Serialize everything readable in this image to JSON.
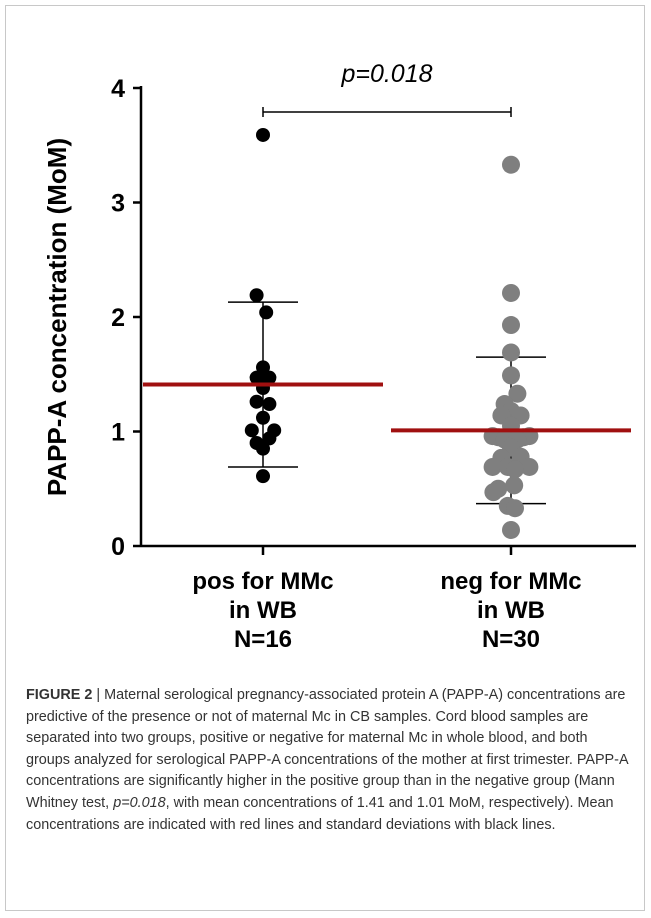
{
  "chart_data": {
    "type": "scatter",
    "title": "",
    "ylabel": "PAPP-A concentration (MoM)",
    "xlabel": "",
    "ylim": [
      0,
      4
    ],
    "yticks": [
      0,
      1,
      2,
      3,
      4
    ],
    "grid": false,
    "categories": [
      {
        "lines": [
          "pos for MMc",
          "in WB",
          "N=16"
        ]
      },
      {
        "lines": [
          "neg for MMc",
          "in WB",
          "N=30"
        ]
      }
    ],
    "series": [
      {
        "mean": 1.41,
        "sd_low": 0.69,
        "sd_high": 2.13,
        "color": "#000000",
        "points": [
          {
            "y": 3.59,
            "dx": 0.0
          },
          {
            "y": 2.19,
            "dx": -0.16
          },
          {
            "y": 2.04,
            "dx": 0.08
          },
          {
            "y": 1.56,
            "dx": 0.0
          },
          {
            "y": 1.47,
            "dx": -0.16
          },
          {
            "y": 1.47,
            "dx": 0.16
          },
          {
            "y": 1.38,
            "dx": 0.0
          },
          {
            "y": 1.26,
            "dx": -0.16
          },
          {
            "y": 1.24,
            "dx": 0.16
          },
          {
            "y": 1.12,
            "dx": 0.0
          },
          {
            "y": 1.01,
            "dx": -0.28
          },
          {
            "y": 1.01,
            "dx": 0.28
          },
          {
            "y": 0.9,
            "dx": -0.16
          },
          {
            "y": 0.94,
            "dx": 0.16
          },
          {
            "y": 0.85,
            "dx": 0.0
          },
          {
            "y": 0.61,
            "dx": 0.0
          }
        ]
      },
      {
        "mean": 1.01,
        "sd_low": 0.37,
        "sd_high": 1.65,
        "color": "#7f7f7f",
        "points": [
          {
            "y": 3.33,
            "dx": 0.0
          },
          {
            "y": 2.21,
            "dx": 0.0
          },
          {
            "y": 1.93,
            "dx": 0.0
          },
          {
            "y": 1.69,
            "dx": 0.0
          },
          {
            "y": 1.49,
            "dx": 0.0
          },
          {
            "y": 1.33,
            "dx": 0.16
          },
          {
            "y": 1.24,
            "dx": -0.16
          },
          {
            "y": 1.18,
            "dx": 0.0
          },
          {
            "y": 1.14,
            "dx": 0.24
          },
          {
            "y": 1.14,
            "dx": -0.24
          },
          {
            "y": 1.05,
            "dx": 0.0
          },
          {
            "y": 0.96,
            "dx": -0.46
          },
          {
            "y": 0.96,
            "dx": 0.46
          },
          {
            "y": 0.95,
            "dx": -0.32
          },
          {
            "y": 0.95,
            "dx": 0.32
          },
          {
            "y": 0.93,
            "dx": -0.16
          },
          {
            "y": 0.93,
            "dx": 0.16
          },
          {
            "y": 0.86,
            "dx": 0.0
          },
          {
            "y": 0.77,
            "dx": -0.24
          },
          {
            "y": 0.78,
            "dx": 0.24
          },
          {
            "y": 0.69,
            "dx": -0.46
          },
          {
            "y": 0.69,
            "dx": 0.46
          },
          {
            "y": 0.69,
            "dx": -0.08
          },
          {
            "y": 0.67,
            "dx": 0.1
          },
          {
            "y": 0.53,
            "dx": 0.08
          },
          {
            "y": 0.5,
            "dx": -0.32
          },
          {
            "y": 0.47,
            "dx": -0.44
          },
          {
            "y": 0.35,
            "dx": -0.08
          },
          {
            "y": 0.33,
            "dx": 0.1
          },
          {
            "y": 0.14,
            "dx": 0.0
          }
        ]
      }
    ],
    "mean_color": "#a01010",
    "sd_color": "#000000",
    "annotation": {
      "text": "p=0.018"
    }
  },
  "caption": {
    "label": "FIGURE 2",
    "separator": " | ",
    "part1": "Maternal serological pregnancy-associated protein A (PAPP-A) concentrations are predictive of the presence or not of maternal Mc in CB samples. Cord blood samples are separated into two groups, positive or negative for maternal Mc in whole blood, and both groups analyzed for serological PAPP-A concentrations of the mother at first trimester. PAPP-A concentrations are significantly higher in the positive group than in the negative group (Mann Whitney test, ",
    "pvalue": "p=0.018",
    "part2": ", with mean concentrations of 1.41 and 1.01 MoM, respectively). Mean concentrations are indicated with red lines and standard deviations with black lines."
  }
}
